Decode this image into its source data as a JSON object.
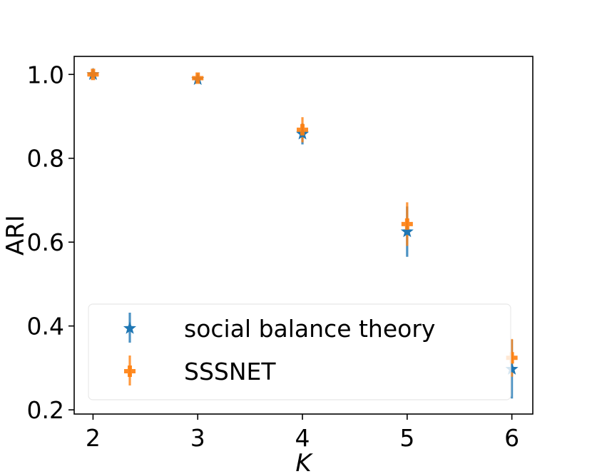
{
  "chart_data": {
    "type": "scatter",
    "xlabel": "K",
    "ylabel": "ARI",
    "x": [
      2,
      3,
      4,
      5,
      6
    ],
    "xlim": [
      1.82,
      6.2
    ],
    "ylim": [
      0.19,
      1.043
    ],
    "xticks": [
      "2",
      "3",
      "4",
      "5",
      "6"
    ],
    "yticks": [
      "0.2",
      "0.4",
      "0.6",
      "0.8",
      "1.0"
    ],
    "ytick_values": [
      0.2,
      0.4,
      0.6,
      0.8,
      1.0
    ],
    "grid": false,
    "legend_position": "lower-left",
    "series": [
      {
        "name": "social balance theory",
        "marker": "star",
        "color": "#1f77b4",
        "values": [
          1.0,
          0.988,
          0.858,
          0.625,
          0.297
        ],
        "errors": [
          0.004,
          0.006,
          0.025,
          0.06,
          0.07
        ]
      },
      {
        "name": "SSSNET",
        "marker": "plus",
        "color": "#ff7f0e",
        "values": [
          1.0,
          0.991,
          0.868,
          0.643,
          0.324
        ],
        "errors": [
          0.004,
          0.006,
          0.03,
          0.052,
          0.045
        ]
      }
    ]
  }
}
